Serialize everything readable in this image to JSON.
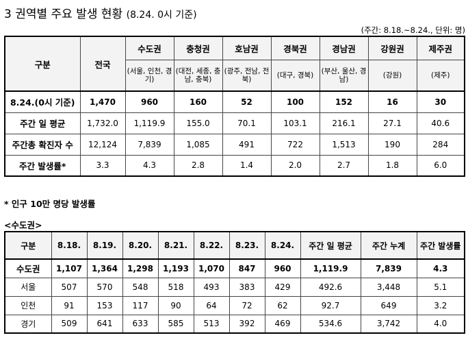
{
  "title": "3 권역별 주요 발생 현황",
  "title_date": "(8.24. 0시 기준)",
  "unit_note": "(주간: 8.18.~8.24., 단위: 명)",
  "regional": {
    "header_category": "구분",
    "header_national": "전국",
    "regions": [
      {
        "name": "수도권",
        "sub": "(서울, 인천, 경기)"
      },
      {
        "name": "충청권",
        "sub": "(대전, 세종, 충남, 충북)"
      },
      {
        "name": "호남권",
        "sub": "(광주, 전남, 전북)"
      },
      {
        "name": "경북권",
        "sub": "(대구, 경북)"
      },
      {
        "name": "경남권",
        "sub": "(부산, 울산, 경남)"
      },
      {
        "name": "강원권",
        "sub": "(강원)"
      },
      {
        "name": "제주권",
        "sub": "(제주)"
      }
    ],
    "rows": [
      {
        "label": "8.24.(0시 기준)",
        "values": [
          "1,470",
          "960",
          "160",
          "52",
          "100",
          "152",
          "16",
          "30"
        ]
      },
      {
        "label": "주간 일 평균",
        "values": [
          "1,732.0",
          "1,119.9",
          "155.0",
          "70.1",
          "103.1",
          "216.1",
          "27.1",
          "40.6"
        ]
      },
      {
        "label": "주간총 확진자 수",
        "values": [
          "12,124",
          "7,839",
          "1,085",
          "491",
          "722",
          "1,513",
          "190",
          "284"
        ]
      },
      {
        "label": "주간 발생률*",
        "values": [
          "3.3",
          "4.3",
          "2.8",
          "1.4",
          "2.0",
          "2.7",
          "1.8",
          "6.0"
        ]
      }
    ]
  },
  "footnote": "* 인구 10만 명당 발생률",
  "capital_label": "<수도권>",
  "capital": {
    "headers": [
      "구분",
      "8.18.",
      "8.19.",
      "8.20.",
      "8.21.",
      "8.22.",
      "8.23.",
      "8.24.",
      "주간 일 평균",
      "주간 누계",
      "주간 발생률"
    ],
    "rows": [
      {
        "label": "수도권",
        "values": [
          "1,107",
          "1,364",
          "1,298",
          "1,193",
          "1,070",
          "847",
          "960",
          "1,119.9",
          "7,839",
          "4.3"
        ]
      },
      {
        "label": "서울",
        "values": [
          "507",
          "570",
          "548",
          "518",
          "493",
          "383",
          "429",
          "492.6",
          "3,448",
          "5.1"
        ]
      },
      {
        "label": "인천",
        "values": [
          "91",
          "153",
          "117",
          "90",
          "64",
          "72",
          "62",
          "92.7",
          "649",
          "3.2"
        ]
      },
      {
        "label": "경기",
        "values": [
          "509",
          "641",
          "633",
          "585",
          "513",
          "392",
          "469",
          "534.6",
          "3,742",
          "4.0"
        ]
      }
    ]
  }
}
